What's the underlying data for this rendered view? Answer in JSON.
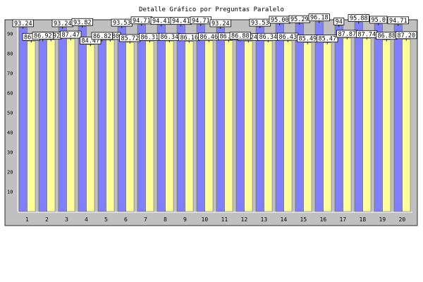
{
  "chart_data": {
    "type": "bar",
    "title": "Detalle Gráfico por Preguntas Paralelo",
    "xlabel": "",
    "ylabel": "",
    "ylim": [
      0,
      100
    ],
    "yticks": [
      10,
      20,
      30,
      40,
      50,
      60,
      70,
      80,
      90
    ],
    "grid": false,
    "categories": [
      "1",
      "2",
      "3",
      "4",
      "5",
      "6",
      "7",
      "8",
      "9",
      "10",
      "11",
      "12",
      "13",
      "14",
      "15",
      "16",
      "17",
      "18",
      "19",
      "20"
    ],
    "series": [
      {
        "color": "#8080ff",
        "values": [
          93.24,
          86.92,
          93.24,
          93.82,
          86.82,
          93.53,
          94.71,
          94.41,
          94.41,
          94.71,
          93.24,
          86.88,
          93.53,
          95.0,
          95.29,
          96.18,
          94.12,
          95.88,
          95.0,
          94.71
        ],
        "labels": [
          "93.24",
          "86.92",
          "93.24",
          "93.82",
          "86.82",
          "93.53",
          "94.71",
          "94.41",
          "94.41",
          "94.71",
          "93.24",
          "86.88",
          "93.53",
          "95.00",
          "95.29",
          "96.18",
          "94",
          "95.88",
          "95.0",
          "94.71"
        ]
      },
      {
        "color": "#ffff99",
        "values": [
          86.3,
          86.92,
          87.47,
          84.47,
          86.8,
          85.72,
          86.31,
          86.34,
          86.16,
          86.46,
          86.52,
          86.24,
          86.34,
          86.43,
          85.49,
          85.47,
          87.87,
          87.74,
          86.88,
          87.2
        ],
        "labels": [
          "86.3",
          "86.92",
          "87.47",
          "84.47",
          "86.80",
          "85.72",
          "86.31",
          "86.34",
          "86.16",
          "86.46",
          "86.52",
          "86.24",
          "86.34",
          "86.43",
          "85.49",
          "85.47",
          "87.87",
          "87.74",
          "86.88",
          "87.20"
        ]
      }
    ],
    "colors": {
      "background": "#ffffff",
      "plot_area": "#c0c0c0",
      "axis": "#000000",
      "errorbar": "#000000",
      "label_box": "#ffffff"
    }
  }
}
